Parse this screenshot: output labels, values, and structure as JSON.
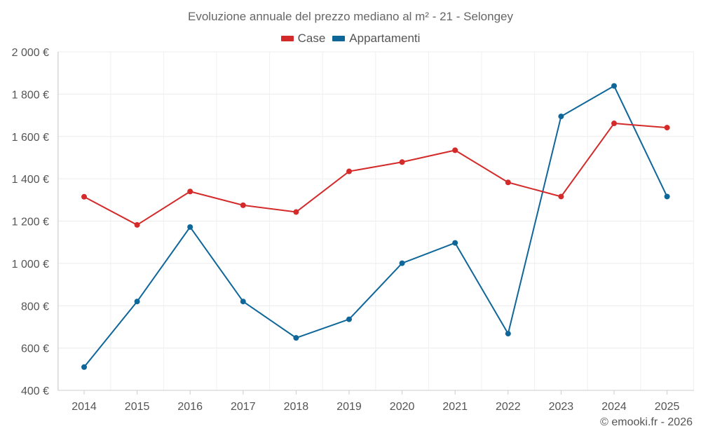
{
  "chart_data": {
    "type": "line",
    "title": "Evoluzione annuale del prezzo mediano al m² - 21 - Selongey",
    "categories": [
      "2014",
      "2015",
      "2016",
      "2017",
      "2018",
      "2019",
      "2020",
      "2021",
      "2022",
      "2023",
      "2024",
      "2025"
    ],
    "series": [
      {
        "name": "Case",
        "color": "#d42a2a",
        "values": [
          1315,
          1182,
          1340,
          1275,
          1243,
          1435,
          1479,
          1535,
          1383,
          1316,
          1662,
          1642
        ]
      },
      {
        "name": "Appartamenti",
        "color": "#0e6699",
        "values": [
          510,
          820,
          1172,
          820,
          648,
          736,
          1001,
          1097,
          668,
          1695,
          1839,
          1316
        ]
      }
    ],
    "y_ticks": [
      400,
      600,
      800,
      1000,
      1200,
      1400,
      1600,
      1800,
      2000
    ],
    "y_tick_labels": [
      "400 €",
      "600 €",
      "800 €",
      "1 000 €",
      "1 200 €",
      "1 400 €",
      "1 600 €",
      "1 800 €",
      "2 000 €"
    ],
    "ylim": [
      400,
      2000
    ],
    "xlabel": "",
    "ylabel": "",
    "grid": true,
    "legend_position": "top-center"
  },
  "credit": "© emooki.fr - 2026"
}
